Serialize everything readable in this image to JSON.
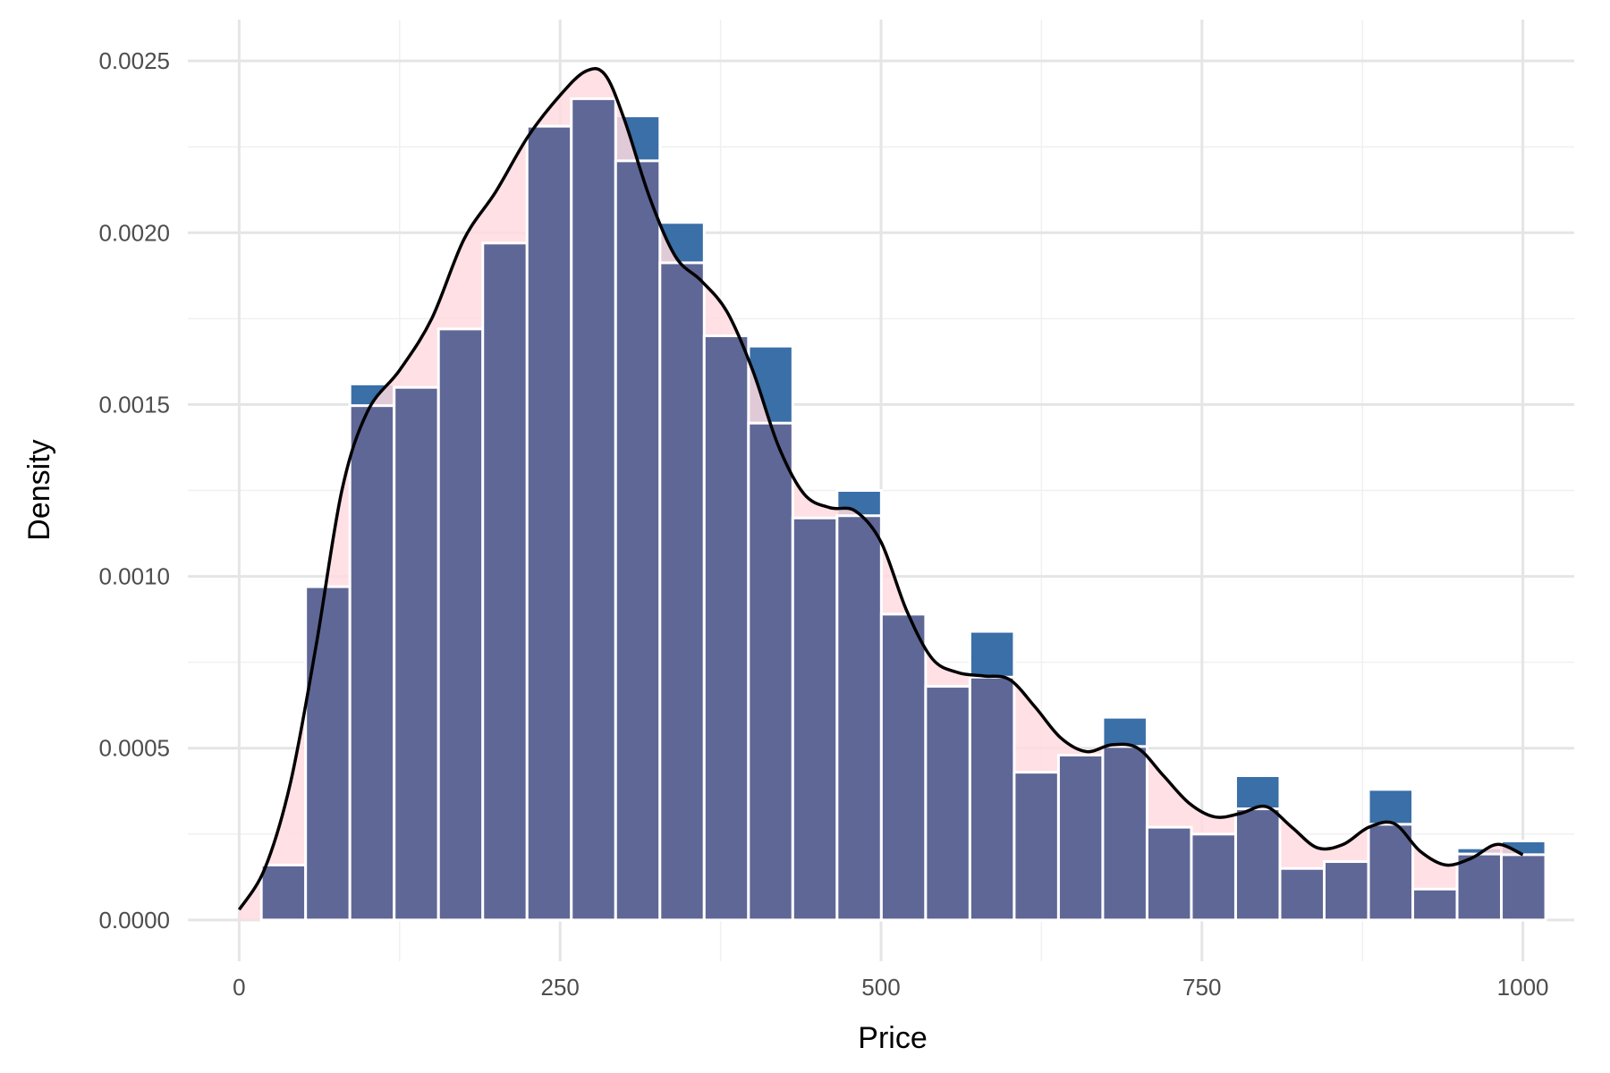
{
  "chart_data": {
    "type": "bar",
    "title": "",
    "xlabel": "Price",
    "ylabel": "Density",
    "xlim": [
      -40,
      1040
    ],
    "ylim": [
      -0.00012,
      0.00262
    ],
    "x_ticks": [
      0,
      250,
      500,
      750,
      1000
    ],
    "x_tick_labels": [
      "0",
      "250",
      "500",
      "750",
      "1000"
    ],
    "y_ticks": [
      0,
      0.0005,
      0.001,
      0.0015,
      0.002,
      0.0025
    ],
    "y_tick_labels": [
      "0.0000",
      "0.0005",
      "0.0010",
      "0.0015",
      "0.0020",
      "0.0025"
    ],
    "grid": true,
    "legend": "none",
    "bin_width": 34.5,
    "bin_centers": [
      34.5,
      69.0,
      103.5,
      138.0,
      172.5,
      207.0,
      241.5,
      276.0,
      310.5,
      345.0,
      379.5,
      414.0,
      448.5,
      483.0,
      517.5,
      552.0,
      586.5,
      621.0,
      655.5,
      690.0,
      724.5,
      759.0,
      793.5,
      828.0,
      862.5,
      897.0,
      931.5,
      966.0,
      1000.5
    ],
    "series": [
      {
        "role": "histogram",
        "color": "#3a6fa8",
        "values": [
          0.00016,
          0.00097,
          0.00156,
          0.00155,
          0.00172,
          0.00197,
          0.00231,
          0.00239,
          0.00234,
          0.00203,
          0.0017,
          0.00167,
          0.00117,
          0.00125,
          0.00089,
          0.00068,
          0.00084,
          0.00043,
          0.00048,
          0.00059,
          0.00027,
          0.00025,
          0.00042,
          0.00015,
          0.00017,
          0.00038,
          9e-05,
          0.00021,
          0.00023
        ]
      },
      {
        "role": "density",
        "fill_color": "#ffdbe0",
        "line_color": "#000000",
        "x": [
          0,
          20,
          40,
          60,
          80,
          100,
          125,
          150,
          175,
          200,
          225,
          250,
          270,
          285,
          300,
          320,
          340,
          360,
          380,
          400,
          420,
          440,
          460,
          480,
          500,
          520,
          540,
          560,
          580,
          600,
          620,
          640,
          660,
          680,
          700,
          720,
          740,
          760,
          780,
          800,
          820,
          840,
          860,
          880,
          900,
          920,
          940,
          960,
          980,
          1000
        ],
        "y": [
          3e-05,
          0.00015,
          0.0004,
          0.0008,
          0.00125,
          0.00148,
          0.0016,
          0.00175,
          0.00198,
          0.00212,
          0.00228,
          0.0024,
          0.00247,
          0.00246,
          0.00233,
          0.0021,
          0.00193,
          0.00186,
          0.00177,
          0.0016,
          0.00138,
          0.00124,
          0.0012,
          0.00119,
          0.0011,
          0.0009,
          0.00076,
          0.00072,
          0.00071,
          0.0007,
          0.00062,
          0.00053,
          0.00049,
          0.00051,
          0.0005,
          0.00042,
          0.00034,
          0.0003,
          0.00031,
          0.00033,
          0.00027,
          0.00021,
          0.00022,
          0.00027,
          0.00028,
          0.0002,
          0.00016,
          0.00018,
          0.00022,
          0.00019
        ]
      }
    ],
    "colors": {
      "background": "#ffffff",
      "grid_major": "#e5e5e5",
      "grid_minor": "#f0f0f0",
      "bar_overlap": "#5f6796",
      "bar_edge": "#ffffff"
    }
  }
}
